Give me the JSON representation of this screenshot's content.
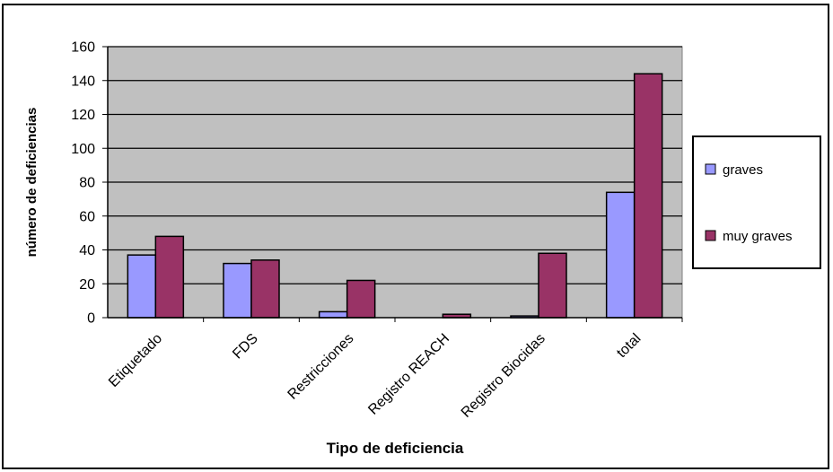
{
  "chart_data": {
    "type": "bar",
    "title": "",
    "xlabel": "Tipo de deficiencia",
    "ylabel": "número de deficiencias",
    "ylim": [
      0,
      160
    ],
    "yticks": [
      0,
      20,
      40,
      60,
      80,
      100,
      120,
      140,
      160
    ],
    "grid": true,
    "legend_position": "right",
    "categories": [
      "Etiquetado",
      "FDS",
      "Restricciones",
      "Registro REACH",
      "Registro Biocidas",
      "total"
    ],
    "series": [
      {
        "name": "graves",
        "color": "#9999ff",
        "values": [
          37,
          32,
          3.5,
          0,
          1,
          74
        ]
      },
      {
        "name": "muy graves",
        "color": "#993366",
        "values": [
          48,
          34,
          22,
          2,
          38,
          144
        ]
      }
    ],
    "plot_background": "#c0c0c0"
  }
}
